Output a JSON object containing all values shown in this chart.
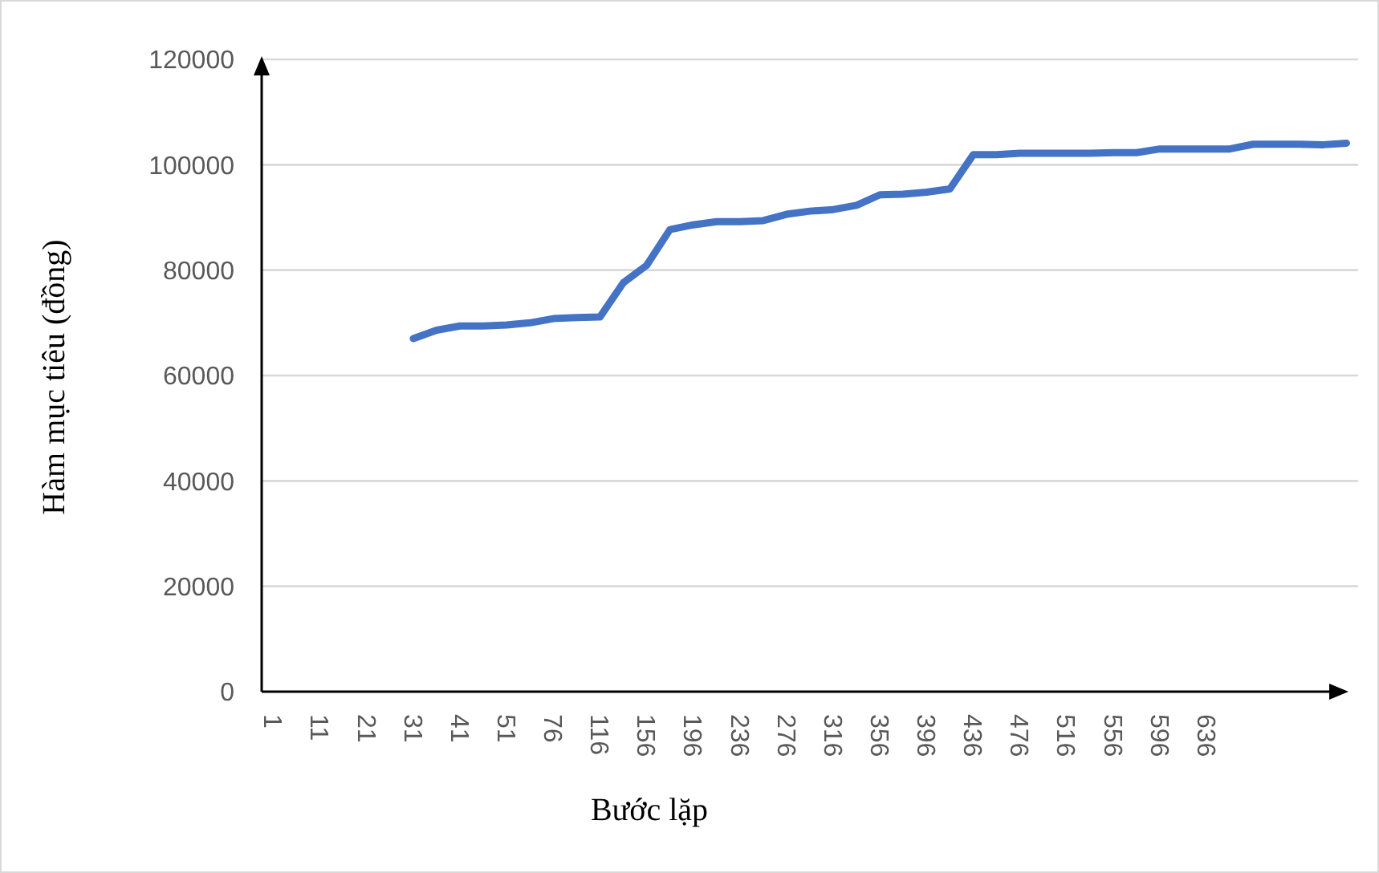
{
  "chart_data": {
    "type": "line",
    "xlabel": "Bước lặp",
    "ylabel": "Hàm mục tiêu (đồng)",
    "categories": [
      "1",
      null,
      "11",
      null,
      "21",
      null,
      "31",
      null,
      "41",
      null,
      "51",
      null,
      "76",
      null,
      "116",
      null,
      "156",
      null,
      "196",
      null,
      "236",
      null,
      "276",
      null,
      "316",
      null,
      "356",
      null,
      "396",
      null,
      "436",
      null,
      "476",
      null,
      "516",
      null,
      "556",
      null,
      "596",
      null,
      "636",
      null,
      null,
      null,
      null,
      null,
      null
    ],
    "series": [
      {
        "color": "#4472c4",
        "values": [
          null,
          null,
          null,
          null,
          null,
          null,
          67000,
          68600,
          69400,
          69400,
          69600,
          70000,
          70800,
          71000,
          71100,
          77600,
          80900,
          87700,
          88600,
          89200,
          89200,
          89400,
          90600,
          91200,
          91500,
          92300,
          94300,
          94400,
          94800,
          95400,
          101900,
          101900,
          102200,
          102200,
          102200,
          102200,
          102300,
          102300,
          103000,
          103000,
          103000,
          103000,
          103900,
          103900,
          103900,
          103800,
          104100
        ]
      }
    ],
    "ylim": [
      0,
      120000
    ],
    "yticks": [
      0,
      20000,
      40000,
      60000,
      80000,
      100000,
      120000
    ],
    "grid": "y",
    "marker": "none",
    "line_style": "solid"
  }
}
